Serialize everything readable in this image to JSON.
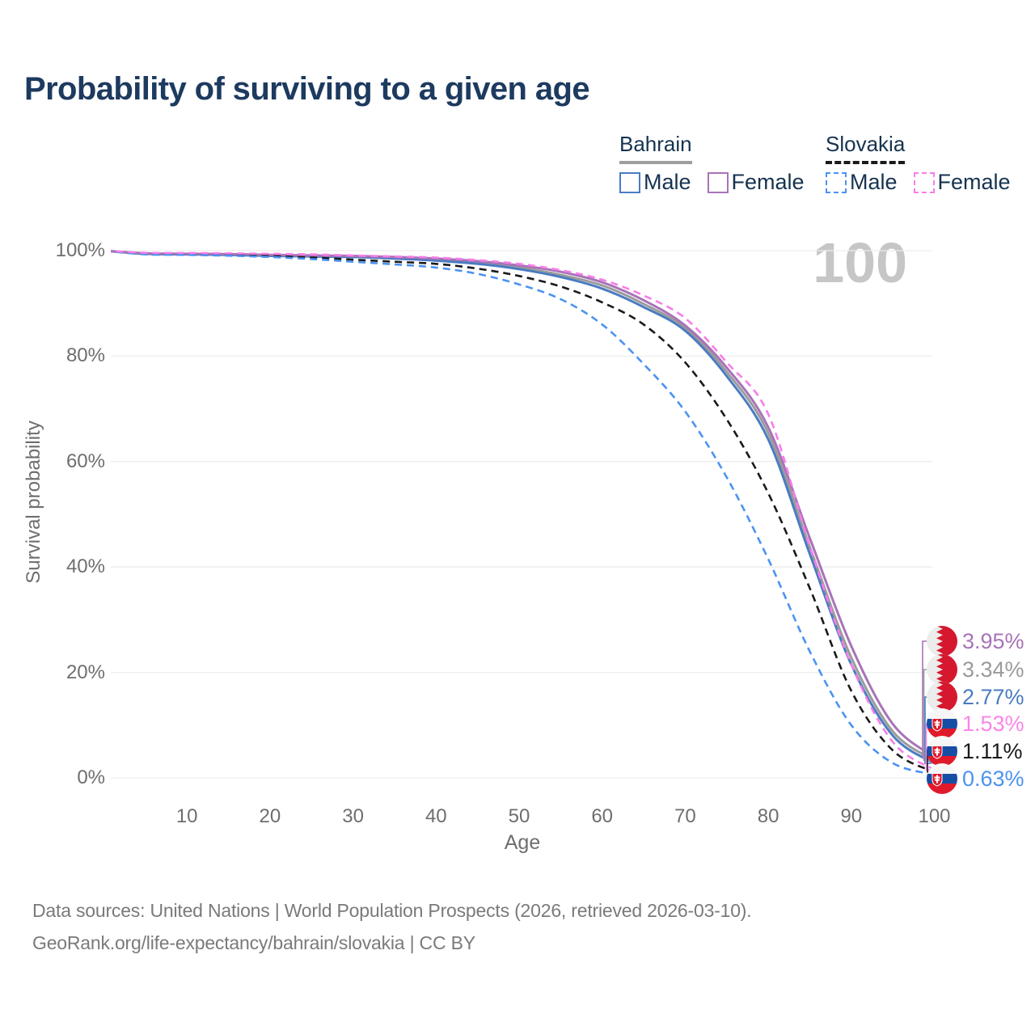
{
  "title": "Probability of surviving to a given age",
  "legend": {
    "groups": [
      {
        "name": "Bahrain",
        "line_style": "solid",
        "items": [
          {
            "label": "Male",
            "color": "#4a7cc2",
            "dashed": false
          },
          {
            "label": "Female",
            "color": "#a873b8",
            "dashed": false
          }
        ]
      },
      {
        "name": "Slovakia",
        "line_style": "dashed",
        "items": [
          {
            "label": "Male",
            "color": "#4b93f1",
            "dashed": true
          },
          {
            "label": "Female",
            "color": "#f87de8",
            "dashed": true
          }
        ]
      }
    ]
  },
  "chart_data": {
    "type": "line",
    "title": "Probability of surviving to a given age",
    "xlabel": "Age",
    "ylabel": "Survival probability",
    "watermark": "100",
    "x_range": [
      0,
      100
    ],
    "y_range_pct": [
      0,
      100
    ],
    "grid": "horizontal",
    "legend_position": "top-right",
    "x_ticks": [
      10,
      20,
      30,
      40,
      50,
      60,
      70,
      80,
      90,
      100
    ],
    "y_ticks": [
      {
        "pct": 0,
        "label": "0%"
      },
      {
        "pct": 20,
        "label": "20%"
      },
      {
        "pct": 40,
        "label": "40%"
      },
      {
        "pct": 60,
        "label": "60%"
      },
      {
        "pct": 80,
        "label": "80%"
      },
      {
        "pct": 100,
        "label": "100%"
      }
    ],
    "x": [
      0,
      5,
      10,
      15,
      20,
      25,
      30,
      35,
      40,
      45,
      50,
      55,
      60,
      65,
      70,
      75,
      80,
      85,
      90,
      95,
      100
    ],
    "series": [
      {
        "name": "Bahrain Total",
        "country": "Bahrain",
        "sex": "Both",
        "style": "solid",
        "color": "#9b9b9b",
        "end_label": "3.34%",
        "values": [
          100,
          99.45,
          99.35,
          99.28,
          99.1,
          99.0,
          98.9,
          98.6,
          98.3,
          97.7,
          96.8,
          95.4,
          93.4,
          89.9,
          85.3,
          77.0,
          65.4,
          43.8,
          22.8,
          8.8,
          3.34
        ]
      },
      {
        "name": "Bahrain Male",
        "country": "Bahrain",
        "sex": "Male",
        "style": "solid",
        "color": "#4a7cc2",
        "end_label": "2.77%",
        "values": [
          100,
          99.4,
          99.3,
          99.2,
          99.0,
          98.9,
          98.8,
          98.5,
          98.1,
          97.5,
          96.5,
          95.0,
          92.8,
          89.3,
          84.8,
          76.2,
          64.2,
          42.5,
          21.5,
          8.0,
          2.77
        ]
      },
      {
        "name": "Bahrain Female",
        "country": "Bahrain",
        "sex": "Female",
        "style": "solid",
        "color": "#a873b8",
        "end_label": "3.95%",
        "values": [
          100,
          99.5,
          99.4,
          99.35,
          99.2,
          99.1,
          99.0,
          98.8,
          98.5,
          98.0,
          97.2,
          96.0,
          94.0,
          90.6,
          85.8,
          77.8,
          66.5,
          45.5,
          25.0,
          10.2,
          3.95
        ]
      },
      {
        "name": "Slovakia Total",
        "country": "Slovakia",
        "sex": "Both",
        "style": "dashed",
        "color": "#1a1a1a",
        "end_label": "1.11%",
        "values": [
          100,
          99.4,
          99.3,
          99.2,
          99.0,
          98.7,
          98.3,
          97.9,
          97.5,
          96.6,
          95.2,
          93.2,
          90.2,
          86.0,
          78.8,
          68.0,
          54.0,
          36.0,
          16.5,
          5.2,
          1.11
        ]
      },
      {
        "name": "Slovakia Male",
        "country": "Slovakia",
        "sex": "Male",
        "style": "dashed",
        "color": "#4b93f1",
        "end_label": "0.63%",
        "values": [
          100,
          99.3,
          99.2,
          99.05,
          98.8,
          98.4,
          97.9,
          97.4,
          96.8,
          95.6,
          93.6,
          90.8,
          86.0,
          78.5,
          69.5,
          57.0,
          41.5,
          24.0,
          10.0,
          2.8,
          0.63
        ]
      },
      {
        "name": "Slovakia Female",
        "country": "Slovakia",
        "sex": "Female",
        "style": "dashed",
        "color": "#f87de8",
        "end_label": "1.53%",
        "values": [
          100,
          99.6,
          99.55,
          99.5,
          99.4,
          99.3,
          99.1,
          98.9,
          98.7,
          98.2,
          97.5,
          96.3,
          94.5,
          91.5,
          87.2,
          78.8,
          69.0,
          44.0,
          21.5,
          6.8,
          1.53
        ]
      }
    ],
    "end_labels": [
      {
        "value": "3.95%",
        "series": "Bahrain Female",
        "flag": "bahrain",
        "color": "#a873b8"
      },
      {
        "value": "3.34%",
        "series": "Bahrain Total",
        "flag": "bahrain",
        "color": "#9b9b9b"
      },
      {
        "value": "2.77%",
        "series": "Bahrain Male",
        "flag": "bahrain",
        "color": "#4a7cc2"
      },
      {
        "value": "1.53%",
        "series": "Slovakia Female",
        "flag": "slovakia",
        "color": "#fb85e9"
      },
      {
        "value": "1.11%",
        "series": "Slovakia Total",
        "flag": "slovakia",
        "color": "#1a1a1a"
      },
      {
        "value": "0.63%",
        "series": "Slovakia Male",
        "flag": "slovakia",
        "color": "#4b93f1"
      }
    ]
  },
  "footer": {
    "line1": "Data sources: United Nations | World Population Prospects (2026, retrieved 2026-03-10).",
    "line2": "GeoRank.org/life-expectancy/bahrain/slovakia | CC BY"
  }
}
